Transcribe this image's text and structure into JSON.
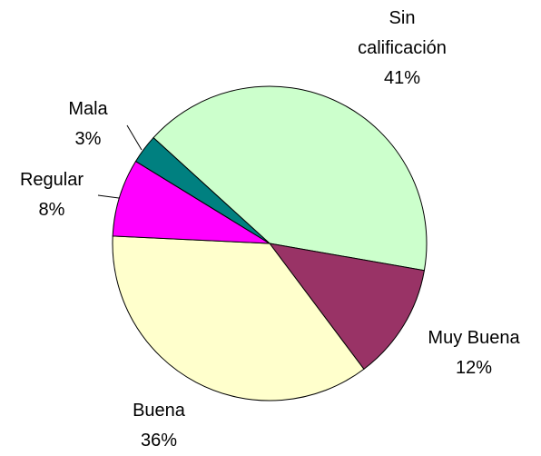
{
  "chart_data": {
    "type": "pie",
    "categories": [
      "Sin calificación",
      "Muy Buena",
      "Buena",
      "Regular",
      "Mala"
    ],
    "values": [
      41,
      12,
      36,
      8,
      3
    ],
    "value_labels": [
      "41%",
      "12%",
      "36%",
      "8%",
      "3%"
    ],
    "colors": [
      "#ccffcc",
      "#993366",
      "#ffffcc",
      "#ff00ff",
      "#008080"
    ]
  }
}
